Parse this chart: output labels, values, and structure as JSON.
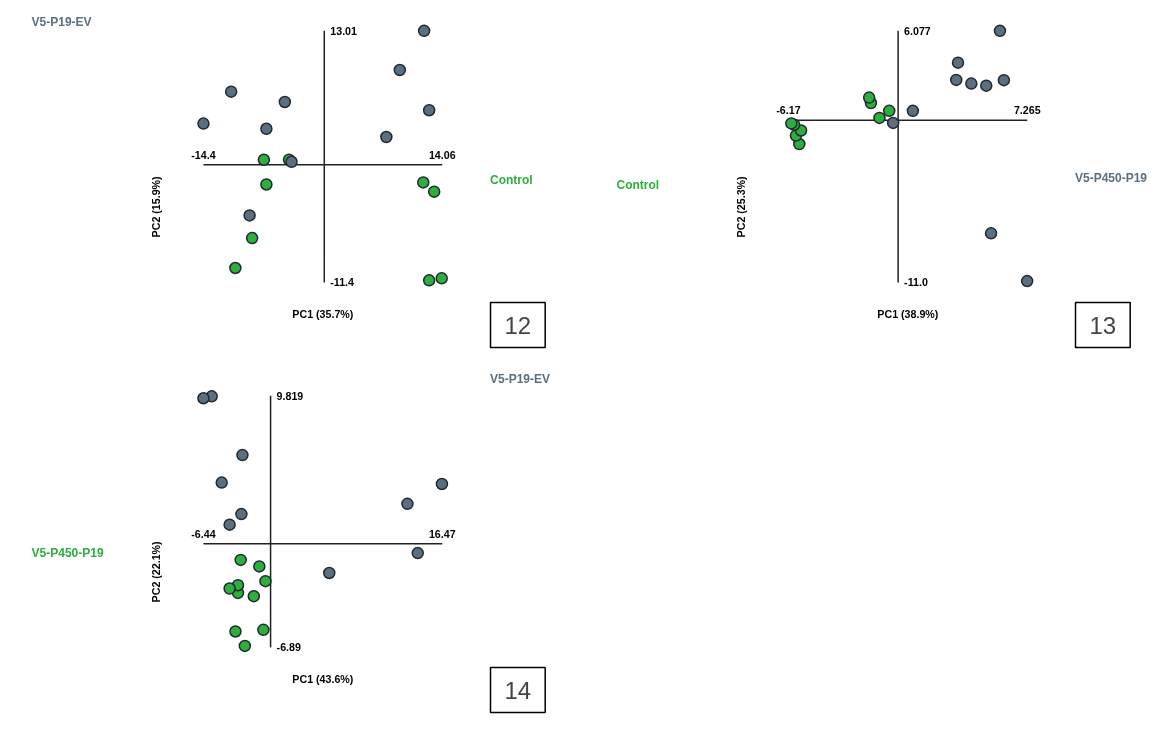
{
  "chart_data": [
    {
      "type": "scatter",
      "xlabel": "PC1 (35.7%)",
      "ylabel": "PC2 (15.9%)",
      "annotations": [
        "12"
      ],
      "xlim": [
        -14.4,
        14.06
      ],
      "ylim": [
        -11.4,
        13.01
      ],
      "xticks": [
        -14.4,
        14.06
      ],
      "yticks": [
        -11.4,
        13.01
      ],
      "marker": "circle",
      "series": [
        {
          "name": "V5-P19-EV",
          "color": "#5b6f80",
          "x": [
            11.9,
            9.0,
            -11.1,
            -4.7,
            12.5,
            -14.4,
            -6.9,
            7.4,
            -3.9,
            -8.9
          ],
          "values": [
            13.0,
            9.2,
            7.1,
            6.1,
            5.3,
            4.0,
            3.5,
            2.7,
            0.3,
            -4.9
          ]
        },
        {
          "name": "Control",
          "color": "#2eae3c",
          "x": [
            -7.2,
            -4.2,
            -6.9,
            11.8,
            13.1,
            -8.6,
            -10.6,
            12.5,
            14.0
          ],
          "values": [
            0.5,
            0.5,
            -1.9,
            -1.7,
            -2.6,
            -7.1,
            -10.0,
            -11.2,
            -11.0
          ]
        }
      ]
    },
    {
      "type": "scatter",
      "xlabel": "PC1 (38.9%)",
      "ylabel": "PC2 (25.3%)",
      "annotations": [
        "13"
      ],
      "xlim": [
        -6.17,
        7.265
      ],
      "ylim": [
        -11.0,
        6.077
      ],
      "xticks": [
        -6.17,
        7.265
      ],
      "yticks": [
        {
          "value": -11.0,
          "label": "-11.0"
        },
        6.077
      ],
      "marker": "circle",
      "series": [
        {
          "name": "V5-P450-P19",
          "color": "#5b6f80",
          "x": [
            5.73,
            3.37,
            3.27,
            4.12,
            4.96,
            5.95,
            0.83,
            -0.28,
            5.23,
            7.26
          ],
          "values": [
            6.07,
            3.91,
            2.74,
            2.49,
            2.35,
            2.72,
            0.64,
            -0.18,
            -7.67,
            -10.91
          ]
        },
        {
          "name": "Control",
          "color": "#2eae3c",
          "x": [
            -6.01,
            -5.85,
            -5.46,
            -5.75,
            -5.56,
            -1.63,
            -1.53,
            -0.5,
            -1.05
          ],
          "values": [
            -0.21,
            -0.3,
            -0.69,
            -1.04,
            -1.61,
            1.54,
            1.17,
            0.64,
            0.16
          ]
        }
      ]
    },
    {
      "type": "scatter",
      "xlabel": "PC1 (43.6%)",
      "ylabel": "PC2 (22.1%)",
      "annotations": [
        "14"
      ],
      "xlim": [
        -6.44,
        16.47
      ],
      "ylim": [
        -6.89,
        9.819
      ],
      "xticks": [
        -6.44,
        16.47
      ],
      "yticks": [
        -6.89,
        9.819
      ],
      "marker": "circle",
      "series": [
        {
          "name": "V5-P19-EV",
          "color": "#5b6f80",
          "x": [
            -6.44,
            -5.65,
            -2.7,
            -4.69,
            -2.8,
            -3.93,
            16.44,
            13.13,
            14.12,
            5.63
          ],
          "values": [
            9.65,
            9.78,
            5.88,
            4.05,
            1.96,
            1.26,
            3.96,
            2.64,
            -0.63,
            -1.95
          ]
        },
        {
          "name": "V5-P450-P19",
          "color": "#2eae3c",
          "x": [
            -2.87,
            -1.08,
            -0.49,
            -3.93,
            -3.13,
            -3.13,
            -1.61,
            -3.37,
            -0.69,
            -2.47
          ],
          "values": [
            -1.08,
            -1.51,
            -2.49,
            -2.98,
            -2.76,
            -3.27,
            -3.49,
            -5.83,
            -5.72,
            -6.79
          ]
        }
      ]
    }
  ]
}
